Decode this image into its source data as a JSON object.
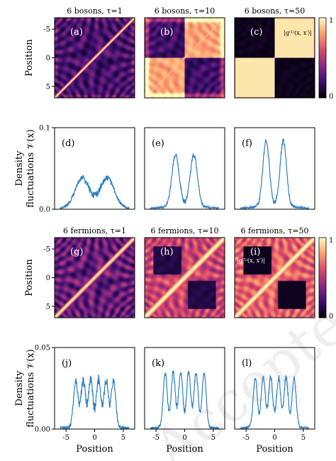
{
  "chart_data": [
    {
      "id": "a",
      "type": "heatmap",
      "title": "6 bosons, τ=1",
      "panel_label": "(a)",
      "ylabel": "Position",
      "y_ticks": [
        "5",
        "0",
        "-5"
      ],
      "xlim": [
        -7,
        7
      ],
      "ylim": [
        -7,
        7
      ],
      "pattern": "boson",
      "stage": 0
    },
    {
      "id": "b",
      "type": "heatmap",
      "title": "6 bosons, τ=10",
      "panel_label": "(b)",
      "pattern": "boson",
      "stage": 1
    },
    {
      "id": "c",
      "type": "heatmap",
      "title": "6 bosons, τ=50",
      "panel_label": "(c)",
      "annotation": "|g⁽¹⁾(x, x′)|",
      "pattern": "boson",
      "stage": 2,
      "colorbar": {
        "ticks": [
          "1",
          "0"
        ],
        "range": [
          0,
          1
        ]
      }
    },
    {
      "id": "d",
      "type": "line",
      "panel_label": "(d)",
      "ylim": [
        0,
        0.1
      ],
      "y_ticks": [
        "0.1",
        "0.0"
      ],
      "ylabel_line1": "Density",
      "ylabel_line2": "fluctuations 𝒱(x)",
      "xlim": [
        -7,
        7
      ],
      "series": [
        {
          "peaks": [
            -2.2,
            2.2
          ],
          "peak_height": 0.035,
          "width": 1.7,
          "noise": 0.004
        }
      ]
    },
    {
      "id": "e",
      "type": "line",
      "panel_label": "(e)",
      "ylim": [
        0,
        0.1
      ],
      "xlim": [
        -7,
        7
      ],
      "series": [
        {
          "peaks": [
            -1.6,
            1.6
          ],
          "peak_height": 0.063,
          "width": 0.9,
          "noise": 0.003
        }
      ]
    },
    {
      "id": "f",
      "type": "line",
      "panel_label": "(f)",
      "ylim": [
        0,
        0.1
      ],
      "xlim": [
        -7,
        7
      ],
      "series": [
        {
          "peaks": [
            -1.5,
            1.5
          ],
          "peak_height": 0.08,
          "width": 0.8,
          "noise": 0.003
        }
      ]
    },
    {
      "id": "g",
      "type": "heatmap",
      "title": "6 fermions, τ=1",
      "panel_label": "(g)",
      "ylabel": "Position",
      "y_ticks": [
        "5",
        "0",
        "-5"
      ],
      "xlim": [
        -7,
        7
      ],
      "ylim": [
        -7,
        7
      ],
      "pattern": "fermion",
      "stage": 0
    },
    {
      "id": "h",
      "type": "heatmap",
      "title": "6 fermions, τ=10",
      "panel_label": "(h)",
      "pattern": "fermion",
      "stage": 1
    },
    {
      "id": "i",
      "type": "heatmap",
      "title": "6 fermions, τ=50",
      "panel_label": "(i)",
      "annotation": "|g⁽¹⁾(x, x′)|",
      "pattern": "fermion",
      "stage": 2,
      "colorbar": {
        "ticks": [
          "1",
          "0"
        ],
        "range": [
          0,
          1
        ]
      }
    },
    {
      "id": "j",
      "type": "line",
      "panel_label": "(j)",
      "ylim": [
        0,
        0.05
      ],
      "y_ticks": [
        "0.05",
        "0.00"
      ],
      "ylabel_line1": "Density",
      "ylabel_line2": "fluctuations 𝒱(x)",
      "xlabel": "Position",
      "x_ticks": [
        "-5",
        "0",
        "5"
      ],
      "xlim": [
        -7,
        7
      ],
      "series": [
        {
          "peaks": [
            -3.3,
            -2.0,
            -0.7,
            0.7,
            2.0,
            3.3
          ],
          "peak_height": 0.028,
          "width": 0.55,
          "noise": 0.003
        }
      ]
    },
    {
      "id": "k",
      "type": "line",
      "panel_label": "(k)",
      "ylim": [
        0,
        0.05
      ],
      "xlabel": "Position",
      "x_ticks": [
        "-5",
        "0",
        "5"
      ],
      "xlim": [
        -7,
        7
      ],
      "series": [
        {
          "peaks": [
            -3.4,
            -2.0,
            -0.7,
            0.7,
            2.0,
            3.4
          ],
          "peak_height": 0.033,
          "width": 0.5,
          "noise": 0.002
        }
      ]
    },
    {
      "id": "l",
      "type": "line",
      "panel_label": "(l)",
      "ylim": [
        0,
        0.05
      ],
      "xlabel": "Position",
      "x_ticks": [
        "-5",
        "0",
        "5"
      ],
      "xlim": [
        -7,
        7
      ],
      "series": [
        {
          "peaks": [
            -3.4,
            -2.0,
            -0.7,
            0.7,
            2.0,
            3.4
          ],
          "peak_height": 0.03,
          "width": 0.5,
          "noise": 0.002
        }
      ]
    }
  ],
  "colors": {
    "line": "#2f7fc1",
    "cmap": [
      "#000004",
      "#3b0f70",
      "#8c2981",
      "#de4968",
      "#fe9f6d",
      "#fcfdbf"
    ]
  },
  "watermark": "Accepted Manuscript"
}
